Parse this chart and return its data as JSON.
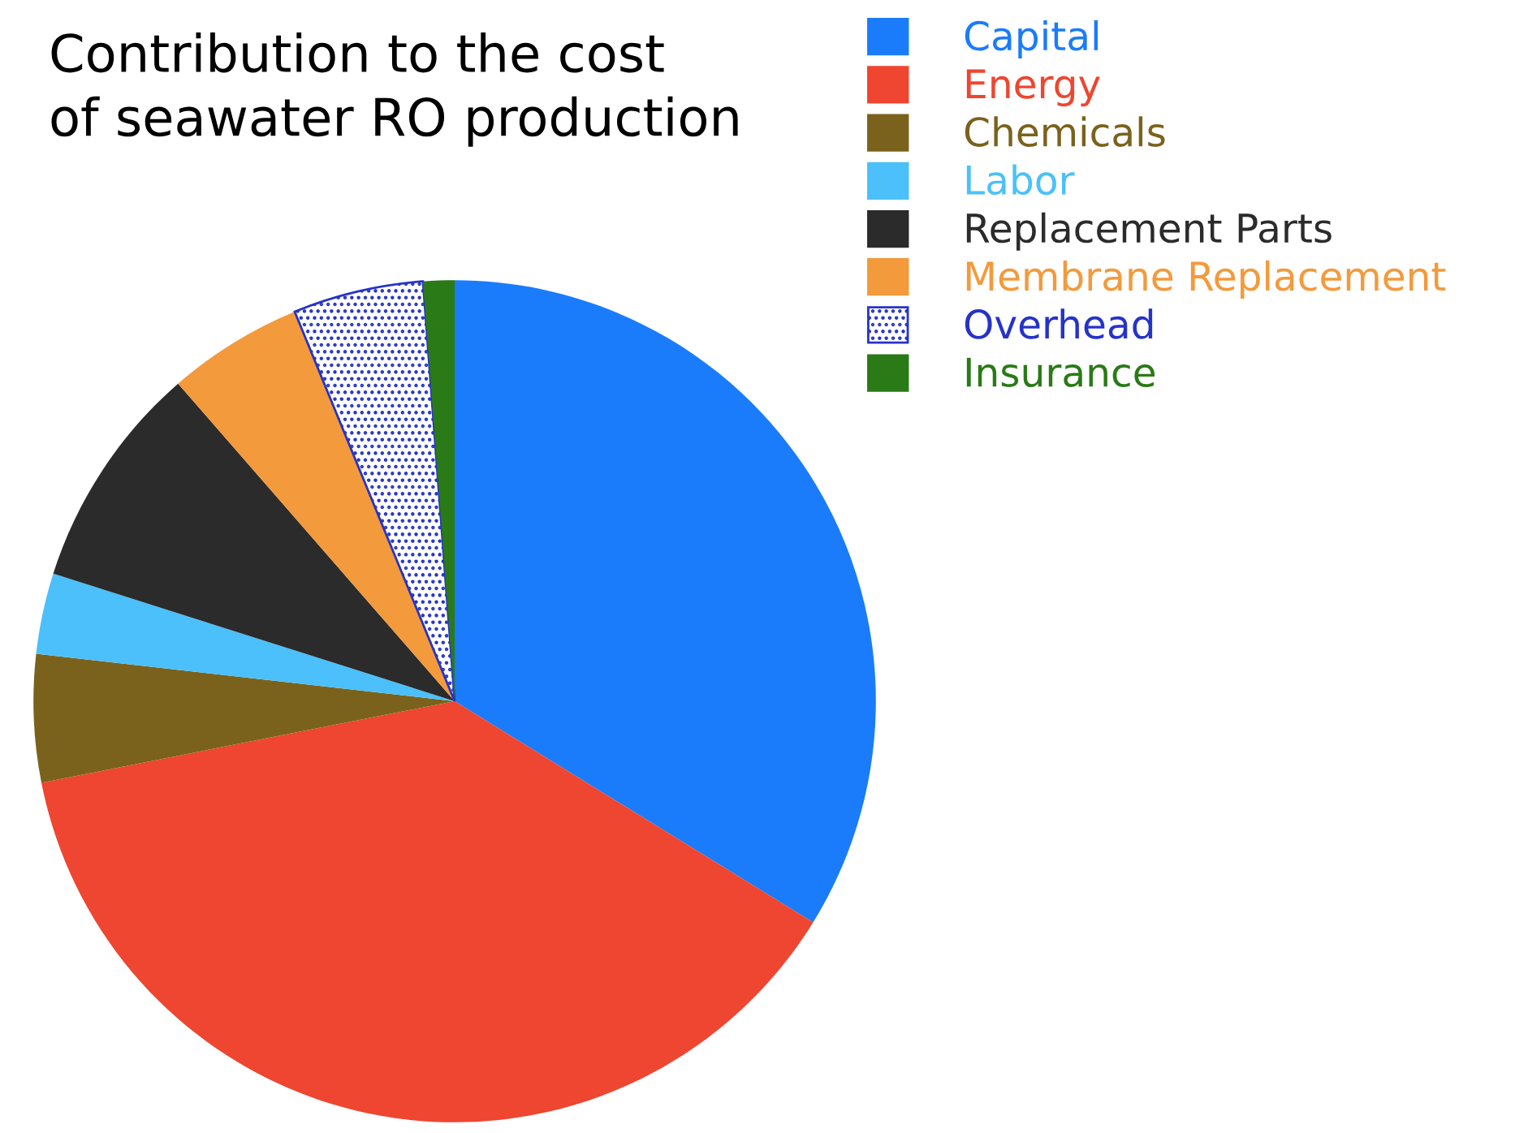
{
  "chart_data": {
    "type": "pie",
    "title": "Contribution to the cost\nof seawater RO production",
    "categories": [
      "Capital",
      "Energy",
      "Chemicals",
      "Labor",
      "Replacement Parts",
      "Membrane Replacement",
      "Overhead",
      "Insurance"
    ],
    "values": [
      33.8,
      38.1,
      4.9,
      3.1,
      8.7,
      5.2,
      5.0,
      1.2
    ],
    "colors": [
      "#1a7cfa",
      "#ee4630",
      "#7b621c",
      "#4bc0fb",
      "#2b2b2b",
      "#f39a3c",
      "#2633c8",
      "#2a7a17"
    ],
    "legend": "top right"
  }
}
